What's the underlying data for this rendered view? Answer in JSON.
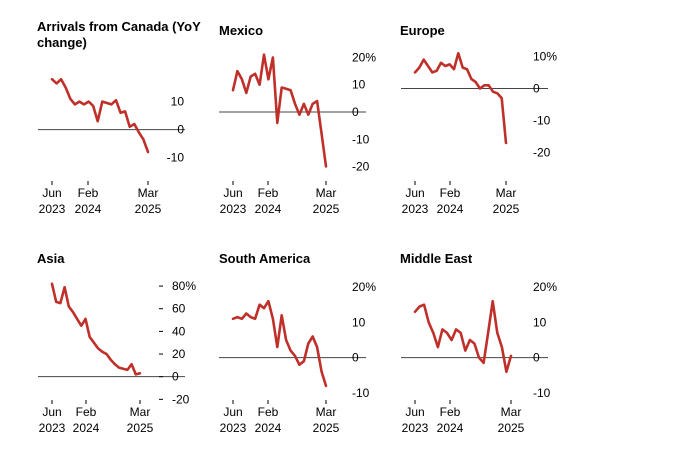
{
  "colors": {
    "line": "#c0302a",
    "zero": "#444444",
    "text": "#000000"
  },
  "chart_data": [
    {
      "type": "line",
      "title": "Arrivals from Canada (YoY change)",
      "title_lines": [
        "Arrivals from Canada (YoY",
        "change)"
      ],
      "ylim": [
        -13,
        22
      ],
      "yticks": [
        {
          "v": 10,
          "label": "10"
        },
        {
          "v": 0,
          "label": "0"
        },
        {
          "v": -10,
          "label": "-10"
        }
      ],
      "xticks": [
        {
          "v": 0,
          "line1": "Jun",
          "line2": "2023"
        },
        {
          "v": 8,
          "line1": "Feb",
          "line2": "2024"
        },
        {
          "v": 21,
          "line1": "Mar",
          "line2": "2025"
        }
      ],
      "x": [
        0,
        1,
        2,
        3,
        4,
        5,
        6,
        7,
        8,
        9,
        10,
        11,
        12,
        13,
        14,
        15,
        16,
        17,
        18,
        19,
        20,
        21
      ],
      "values": [
        18,
        16.5,
        18,
        15,
        11,
        9,
        10,
        9,
        10,
        8.5,
        3,
        10,
        9.5,
        9,
        10.5,
        6,
        6.5,
        1,
        2,
        -1,
        -3.5,
        -8
      ]
    },
    {
      "type": "line",
      "title": "Mexico",
      "title_lines": [
        "Mexico"
      ],
      "ylim": [
        -22,
        22
      ],
      "yticks": [
        {
          "v": 20,
          "label": "20%"
        },
        {
          "v": 10,
          "label": "10"
        },
        {
          "v": 0,
          "label": "0"
        },
        {
          "v": -10,
          "label": "-10"
        },
        {
          "v": -20,
          "label": "-20"
        }
      ],
      "xticks": [
        {
          "v": 0,
          "line1": "Jun",
          "line2": "2023"
        },
        {
          "v": 8,
          "line1": "Feb",
          "line2": "2024"
        },
        {
          "v": 21,
          "line1": "Mar",
          "line2": "2025"
        }
      ],
      "x": [
        0,
        1,
        2,
        3,
        4,
        5,
        6,
        7,
        8,
        9,
        10,
        11,
        12,
        13,
        14,
        15,
        16,
        17,
        18,
        19,
        20,
        21
      ],
      "values": [
        8,
        15,
        12,
        7,
        13,
        14,
        10,
        21,
        12,
        20,
        -4,
        9,
        8.5,
        8,
        3,
        -1,
        3,
        -1,
        3,
        4,
        -8,
        -20
      ]
    },
    {
      "type": "line",
      "title": "Europe",
      "title_lines": [
        "Europe"
      ],
      "ylim": [
        -22,
        12
      ],
      "yticks": [
        {
          "v": 10,
          "label": "10%"
        },
        {
          "v": 0,
          "label": "0"
        },
        {
          "v": -10,
          "label": "-10"
        },
        {
          "v": -20,
          "label": "-20"
        }
      ],
      "xticks": [
        {
          "v": 0,
          "line1": "Jun",
          "line2": "2023"
        },
        {
          "v": 8,
          "line1": "Feb",
          "line2": "2024"
        },
        {
          "v": 21,
          "line1": "Mar",
          "line2": "2025"
        }
      ],
      "x": [
        0,
        1,
        2,
        3,
        4,
        5,
        6,
        7,
        8,
        9,
        10,
        11,
        12,
        13,
        14,
        15,
        16,
        17,
        18,
        19,
        20,
        21
      ],
      "values": [
        5,
        6.5,
        9,
        7,
        5,
        5.5,
        8,
        7,
        7.5,
        6,
        11,
        6.5,
        6,
        3,
        2,
        0,
        1,
        1,
        -1,
        -1.5,
        -3,
        -17
      ]
    },
    {
      "type": "line",
      "title": "Asia",
      "title_lines": [
        "Asia"
      ],
      "ylim": [
        -25,
        88
      ],
      "yticks": [
        {
          "v": 80,
          "label": "80%"
        },
        {
          "v": 60,
          "label": "60"
        },
        {
          "v": 40,
          "label": "40"
        },
        {
          "v": 20,
          "label": "20"
        },
        {
          "v": 0,
          "label": "0"
        },
        {
          "v": -20,
          "label": "-20"
        }
      ],
      "tick_marks": true,
      "xticks": [
        {
          "v": 0,
          "line1": "Jun",
          "line2": "2023"
        },
        {
          "v": 8,
          "line1": "Feb",
          "line2": "2024"
        },
        {
          "v": 21,
          "line1": "Mar",
          "line2": "2025"
        }
      ],
      "x": [
        0,
        1,
        2,
        3,
        4,
        5,
        6,
        7,
        8,
        9,
        10,
        11,
        12,
        13,
        14,
        15,
        16,
        17,
        18,
        19,
        20,
        21
      ],
      "values": [
        82,
        66,
        65,
        79,
        62,
        57,
        51,
        45,
        51,
        35,
        30,
        25,
        22,
        20,
        15,
        11,
        8,
        7,
        6,
        11,
        2,
        3
      ]
    },
    {
      "type": "line",
      "title": "South America",
      "title_lines": [
        "South America"
      ],
      "ylim": [
        -12,
        22
      ],
      "yticks": [
        {
          "v": 20,
          "label": "20%"
        },
        {
          "v": 10,
          "label": "10"
        },
        {
          "v": 0,
          "label": "0"
        },
        {
          "v": -10,
          "label": "-10"
        }
      ],
      "xticks": [
        {
          "v": 0,
          "line1": "Jun",
          "line2": "2023"
        },
        {
          "v": 8,
          "line1": "Feb",
          "line2": "2024"
        },
        {
          "v": 21,
          "line1": "Mar",
          "line2": "2025"
        }
      ],
      "x": [
        0,
        1,
        2,
        3,
        4,
        5,
        6,
        7,
        8,
        9,
        10,
        11,
        12,
        13,
        14,
        15,
        16,
        17,
        18,
        19,
        20,
        21
      ],
      "values": [
        11,
        11.5,
        11,
        12.5,
        11.5,
        11,
        15,
        14,
        16,
        11,
        3,
        12,
        5,
        2,
        0.5,
        -2,
        -1,
        4,
        6,
        3,
        -4,
        -8
      ]
    },
    {
      "type": "line",
      "title": "Middle East",
      "title_lines": [
        "Middle East"
      ],
      "ylim": [
        -12,
        22
      ],
      "yticks": [
        {
          "v": 20,
          "label": "20%"
        },
        {
          "v": 10,
          "label": "10"
        },
        {
          "v": 0,
          "label": "0"
        },
        {
          "v": -10,
          "label": "-10"
        }
      ],
      "xticks": [
        {
          "v": 0,
          "line1": "Jun",
          "line2": "2023"
        },
        {
          "v": 8,
          "line1": "Feb",
          "line2": "2024"
        },
        {
          "v": 21,
          "line1": "Mar",
          "line2": "2025"
        }
      ],
      "x": [
        0,
        1,
        2,
        3,
        4,
        5,
        6,
        7,
        8,
        9,
        10,
        11,
        12,
        13,
        14,
        15,
        16,
        17,
        18,
        19,
        20,
        21
      ],
      "values": [
        13,
        14.5,
        15,
        10,
        7,
        3,
        8,
        7,
        5,
        8,
        7,
        2,
        5,
        4,
        0,
        -1.5,
        7,
        16,
        7,
        3,
        -4,
        0.5
      ]
    }
  ]
}
